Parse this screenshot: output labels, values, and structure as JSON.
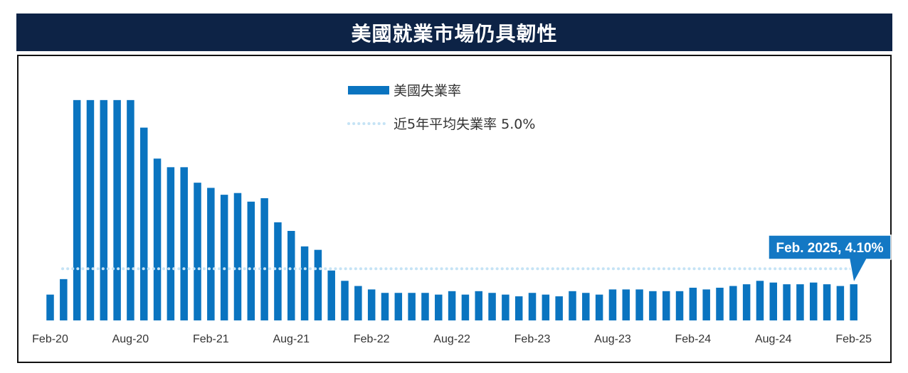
{
  "title": "美國就業市場仍具韌性",
  "colors": {
    "title_bg": "#0d2346",
    "bar": "#0a74c0",
    "avg_line": "#c5e3f5",
    "callout_bg": "#1378c4"
  },
  "chart_data": {
    "type": "bar",
    "categories": [
      "Feb-20",
      "Mar-20",
      "Apr-20",
      "May-20",
      "Jun-20",
      "Jul-20",
      "Aug-20",
      "Sep-20",
      "Oct-20",
      "Nov-20",
      "Dec-20",
      "Jan-21",
      "Feb-21",
      "Mar-21",
      "Apr-21",
      "May-21",
      "Jun-21",
      "Jul-21",
      "Aug-21",
      "Sep-21",
      "Oct-21",
      "Nov-21",
      "Dec-21",
      "Jan-22",
      "Feb-22",
      "Mar-22",
      "Apr-22",
      "May-22",
      "Jun-22",
      "Jul-22",
      "Aug-22",
      "Sep-22",
      "Oct-22",
      "Nov-22",
      "Dec-22",
      "Jan-23",
      "Feb-23",
      "Mar-23",
      "Apr-23",
      "May-23",
      "Jun-23",
      "Jul-23",
      "Aug-23",
      "Sep-23",
      "Oct-23",
      "Nov-23",
      "Dec-23",
      "Jan-24",
      "Feb-24",
      "Mar-24",
      "Apr-24",
      "May-24",
      "Jun-24",
      "Jul-24",
      "Aug-24",
      "Sep-24",
      "Oct-24",
      "Nov-24",
      "Dec-24",
      "Jan-25",
      "Feb-25"
    ],
    "x_tick_labels": [
      "Feb-20",
      "Aug-20",
      "Feb-21",
      "Aug-21",
      "Feb-22",
      "Aug-22",
      "Feb-23",
      "Aug-23",
      "Feb-24",
      "Aug-24",
      "Feb-25"
    ],
    "series": [
      {
        "name": "美國失業率",
        "values": [
          3.5,
          4.4,
          14.8,
          14.8,
          14.8,
          14.8,
          14.8,
          13.2,
          11.4,
          10.9,
          10.9,
          10.0,
          9.7,
          9.3,
          9.4,
          8.9,
          9.1,
          7.7,
          7.2,
          6.3,
          6.1,
          4.9,
          4.3,
          4.0,
          3.8,
          3.6,
          3.6,
          3.6,
          3.6,
          3.5,
          3.7,
          3.5,
          3.7,
          3.6,
          3.5,
          3.4,
          3.6,
          3.5,
          3.4,
          3.7,
          3.6,
          3.5,
          3.8,
          3.8,
          3.8,
          3.7,
          3.7,
          3.7,
          3.9,
          3.8,
          3.9,
          4.0,
          4.1,
          4.3,
          4.2,
          4.1,
          4.1,
          4.2,
          4.1,
          4.0,
          4.1
        ]
      }
    ],
    "reference_line": {
      "name": "近5年平均失業率 5.0%",
      "value": 5.0,
      "style": "dotted"
    },
    "callout": {
      "label": "Feb. 2025, 4.10%",
      "category": "Feb-25"
    },
    "ylim": [
      2.0,
      15.0
    ],
    "grid": false,
    "legend_position": "top-center",
    "xlabel": "",
    "ylabel": ""
  }
}
